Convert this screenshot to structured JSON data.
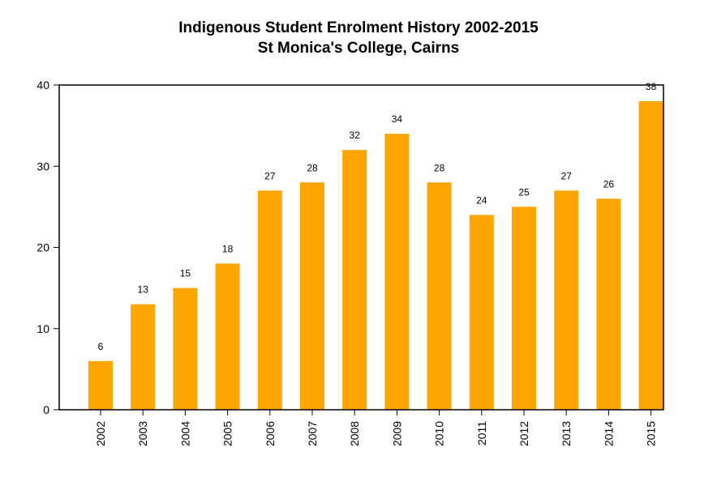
{
  "chart_data": {
    "type": "bar",
    "title": "Indigenous Student Enrolment History 2002-2015",
    "subtitle": "St Monica's College, Cairns",
    "xlabel": "",
    "ylabel": "",
    "categories": [
      "2002",
      "2003",
      "2004",
      "2005",
      "2006",
      "2007",
      "2008",
      "2009",
      "2010",
      "2011",
      "2012",
      "2013",
      "2014",
      "2015"
    ],
    "values": [
      6,
      13,
      15,
      18,
      27,
      28,
      32,
      34,
      28,
      24,
      25,
      27,
      26,
      38
    ],
    "ylim": [
      0,
      40
    ],
    "yticks": [
      0,
      10,
      20,
      30,
      40
    ],
    "grid": false,
    "legend": "none",
    "bar_color": "#ffa500",
    "data_labels": true
  }
}
